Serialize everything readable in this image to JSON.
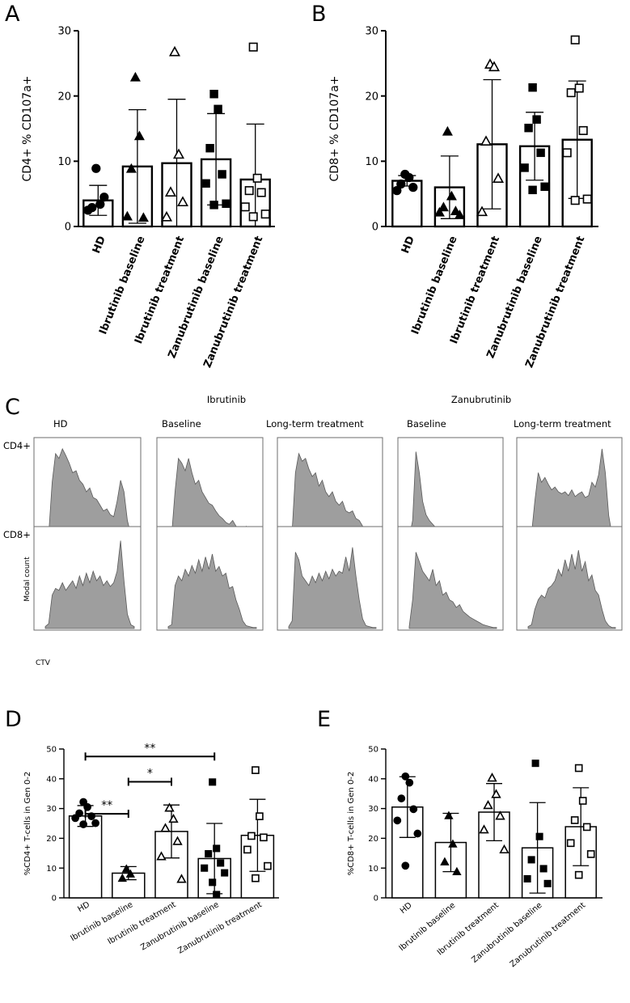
{
  "panels": {
    "A": "A",
    "B": "B",
    "C": "C",
    "D": "D",
    "E": "E"
  },
  "chart_data": [
    {
      "id": "A",
      "type": "bar",
      "title": "",
      "ylabel": "CD4+ % CD107a+",
      "xlabel": "",
      "ylim": [
        0,
        30
      ],
      "yticks": [
        0,
        10,
        20,
        30
      ],
      "categories": [
        "HD",
        "Ibrutinib baseline",
        "Ibrutinib treatment",
        "Zanubrutinib baseline",
        "Zanubrutinib treatment"
      ],
      "markers": [
        "circle-filled",
        "triangle-filled",
        "triangle-open",
        "square-filled",
        "square-open"
      ],
      "values": [
        4,
        9.2,
        9.7,
        10.3,
        7.2
      ],
      "sd": [
        2.3,
        8.7,
        9.8,
        7.0,
        8.5
      ],
      "points": [
        [
          8.9,
          3.4,
          2.9,
          4.5,
          2.5
        ],
        [
          22.8,
          13.8,
          8.8,
          1.3,
          1.5
        ],
        [
          26.7,
          11.0,
          5.2,
          3.7,
          1.4
        ],
        [
          20.3,
          18.0,
          12.0,
          8.0,
          6.6,
          3.5,
          3.3
        ],
        [
          27.5,
          7.4,
          5.5,
          5.2,
          3.0,
          1.9,
          1.5
        ]
      ],
      "significance": []
    },
    {
      "id": "B",
      "type": "bar",
      "title": "",
      "ylabel": "CD8+ % CD107a+",
      "xlabel": "",
      "ylim": [
        0,
        30
      ],
      "yticks": [
        0,
        10,
        20,
        30
      ],
      "categories": [
        "HD",
        "Ibrutinib baseline",
        "Ibrutinib treatment",
        "Zanubrutinib baseline",
        "Zanubrutinib treatment"
      ],
      "markers": [
        "circle-filled",
        "triangle-filled",
        "triangle-open",
        "square-filled",
        "square-open"
      ],
      "values": [
        7,
        6,
        12.6,
        12.3,
        13.3
      ],
      "sd": [
        0.8,
        4.8,
        9.9,
        5.2,
        9.0
      ],
      "points": [
        [
          8.0,
          7.5,
          6.5,
          6.0,
          5.5
        ],
        [
          14.5,
          4.6,
          2.9,
          2.3,
          2.1,
          1.7
        ],
        [
          24.8,
          24.4,
          13.0,
          7.3,
          2.2
        ],
        [
          21.3,
          16.4,
          15.1,
          11.3,
          9.0,
          6.1,
          5.6
        ],
        [
          28.6,
          21.2,
          20.5,
          14.7,
          11.3,
          4.2,
          4.0
        ]
      ],
      "significance": []
    },
    {
      "id": "D",
      "type": "bar",
      "title": "",
      "ylabel": "%CD4+ T-cells in Gen 0-2",
      "xlabel": "",
      "ylim": [
        0,
        50
      ],
      "yticks": [
        0,
        10,
        20,
        30,
        40,
        50
      ],
      "categories": [
        "HD",
        "Ibrutinib baseline",
        "Ibrutinib treatment",
        "Zanubrutinib baseline",
        "Zanubrutinib treatment"
      ],
      "markers": [
        "circle-filled",
        "triangle-filled",
        "triangle-open",
        "square-filled",
        "square-open"
      ],
      "values": [
        27.5,
        8.3,
        22.3,
        13.2,
        21.0
      ],
      "sd": [
        3.5,
        2.2,
        8.9,
        11.8,
        12.1
      ],
      "points": [
        [
          32.2,
          30.5,
          28.4,
          27.4,
          26.8,
          25.1,
          24.7
        ],
        [
          9.6,
          7.9,
          6.5
        ],
        [
          30.1,
          26.4,
          23.3,
          18.9,
          13.8,
          6.2
        ],
        [
          38.9,
          16.6,
          14.8,
          11.7,
          10.0,
          8.4,
          5.2,
          1.1
        ],
        [
          42.9,
          27.4,
          20.8,
          20.3,
          16.2,
          10.7,
          6.6
        ]
      ],
      "significance": [
        {
          "from": 0,
          "to": 1,
          "label": "**",
          "level": 43.3
        },
        {
          "from": 1,
          "to": 2,
          "label": "*",
          "level": 59.8
        },
        {
          "from": 0,
          "to": 3,
          "label": "**",
          "level": 72.8
        }
      ]
    },
    {
      "id": "E",
      "type": "bar",
      "title": "",
      "ylabel": "%CD8+ T-cells in Gen 0-2",
      "xlabel": "",
      "ylim": [
        0,
        50
      ],
      "yticks": [
        0,
        10,
        20,
        30,
        40,
        50
      ],
      "categories": [
        "HD",
        "Ibrutinib baseline",
        "Ibrutinib treatment",
        "Zanubrutinib baseline",
        "Zanubrutinib treatment"
      ],
      "markers": [
        "circle-filled",
        "triangle-filled",
        "triangle-open",
        "square-filled",
        "square-open"
      ],
      "values": [
        30.5,
        18.6,
        28.8,
        16.8,
        23.9
      ],
      "sd": [
        10.2,
        9.8,
        9.6,
        15.2,
        13.1
      ],
      "points": [
        [
          40.8,
          38.7,
          33.4,
          29.8,
          26.0,
          21.6,
          10.8
        ],
        [
          27.5,
          18.0,
          12.0,
          8.7
        ],
        [
          40.2,
          34.7,
          31.0,
          27.4,
          22.8,
          16.1
        ],
        [
          45.2,
          20.6,
          12.8,
          9.8,
          6.4,
          4.8
        ],
        [
          43.6,
          32.6,
          26.1,
          23.8,
          18.4,
          14.7,
          7.7
        ]
      ],
      "significance": []
    }
  ],
  "histograms": {
    "group_ibrutinib": "Ibrutinib",
    "group_zanubrutinib": "Zanubrutinib",
    "columns": [
      "HD",
      "Baseline",
      "Long-term treatment",
      "Baseline",
      "Long-term treatment"
    ],
    "rows": [
      "CD4+",
      "CD8+"
    ],
    "y_axis_label": "Modal count",
    "x_axis_label": "CTV",
    "fill_color": "#9e9e9e",
    "profiles": [
      [
        [
          0.02,
          0.05,
          0.6,
          0.9,
          0.85,
          0.95,
          0.88,
          0.8,
          0.7,
          0.72,
          0.62,
          0.58,
          0.5,
          0.54,
          0.44,
          0.42,
          0.36,
          0.3,
          0.32,
          0.26,
          0.24,
          0.4,
          0.62,
          0.5,
          0.2,
          0.05,
          0.02
        ],
        [
          0.02,
          0.04,
          0.5,
          0.85,
          0.8,
          0.72,
          0.85,
          0.7,
          0.58,
          0.62,
          0.5,
          0.44,
          0.38,
          0.36,
          0.3,
          0.25,
          0.22,
          0.18,
          0.16,
          0.2,
          0.14,
          0.12,
          0.1,
          0.14,
          0.08,
          0.04,
          0.02
        ],
        [
          0.02,
          0.08,
          0.7,
          0.9,
          0.82,
          0.85,
          0.74,
          0.66,
          0.7,
          0.56,
          0.62,
          0.5,
          0.45,
          0.5,
          0.4,
          0.36,
          0.4,
          0.3,
          0.28,
          0.3,
          0.22,
          0.2,
          0.14,
          0.1,
          0.05,
          0.02,
          0.01
        ],
        [
          0.02,
          0.2,
          0.92,
          0.7,
          0.4,
          0.26,
          0.2,
          0.16,
          0.12,
          0.1,
          0.09,
          0.08,
          0.07,
          0.06,
          0.06,
          0.05,
          0.05,
          0.04,
          0.05,
          0.04,
          0.03,
          0.05,
          0.04,
          0.03,
          0.02,
          0.01,
          0.01
        ],
        [
          0.02,
          0.05,
          0.4,
          0.7,
          0.6,
          0.65,
          0.58,
          0.52,
          0.55,
          0.5,
          0.48,
          0.5,
          0.46,
          0.52,
          0.45,
          0.48,
          0.5,
          0.44,
          0.46,
          0.6,
          0.55,
          0.68,
          0.95,
          0.7,
          0.25,
          0.05,
          0.02
        ]
      ],
      [
        [
          0.02,
          0.05,
          0.35,
          0.42,
          0.4,
          0.48,
          0.4,
          0.45,
          0.5,
          0.42,
          0.55,
          0.45,
          0.58,
          0.48,
          0.6,
          0.5,
          0.55,
          0.45,
          0.5,
          0.44,
          0.48,
          0.6,
          0.92,
          0.5,
          0.15,
          0.04,
          0.02
        ],
        [
          0.02,
          0.04,
          0.45,
          0.55,
          0.5,
          0.62,
          0.55,
          0.66,
          0.58,
          0.72,
          0.6,
          0.75,
          0.62,
          0.78,
          0.6,
          0.65,
          0.55,
          0.58,
          0.42,
          0.44,
          0.3,
          0.2,
          0.08,
          0.03,
          0.02,
          0.01,
          0.01
        ],
        [
          0.02,
          0.08,
          0.8,
          0.72,
          0.55,
          0.5,
          0.45,
          0.55,
          0.48,
          0.58,
          0.5,
          0.6,
          0.52,
          0.62,
          0.55,
          0.6,
          0.58,
          0.75,
          0.6,
          0.85,
          0.55,
          0.3,
          0.1,
          0.03,
          0.02,
          0.01,
          0.01
        ],
        [
          0.02,
          0.3,
          0.8,
          0.7,
          0.6,
          0.55,
          0.5,
          0.62,
          0.45,
          0.5,
          0.35,
          0.38,
          0.3,
          0.28,
          0.22,
          0.25,
          0.18,
          0.15,
          0.12,
          0.1,
          0.08,
          0.06,
          0.04,
          0.03,
          0.02,
          0.01,
          0.01
        ],
        [
          0.02,
          0.04,
          0.2,
          0.3,
          0.35,
          0.32,
          0.42,
          0.45,
          0.5,
          0.62,
          0.55,
          0.72,
          0.6,
          0.78,
          0.62,
          0.82,
          0.6,
          0.7,
          0.5,
          0.56,
          0.4,
          0.35,
          0.2,
          0.08,
          0.03,
          0.01,
          0.01
        ]
      ]
    ]
  }
}
